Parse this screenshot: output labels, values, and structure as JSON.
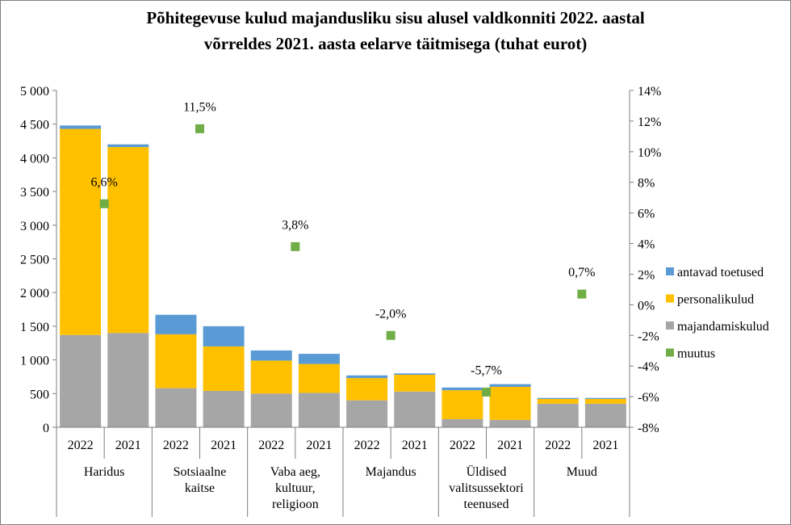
{
  "chart_data": {
    "type": "bar",
    "title_line1": "Põhitegevuse kulud majandusliku sisu alusel valdkonniti 2022. aastal",
    "title_line2": "võrreldes 2021. aasta eelarve täitmisega (tuhat eurot)",
    "groups": [
      {
        "label_lines": [
          "Haridus"
        ],
        "years": [
          "2022",
          "2021"
        ]
      },
      {
        "label_lines": [
          "Sotsiaalne",
          "kaitse"
        ],
        "years": [
          "2022",
          "2021"
        ]
      },
      {
        "label_lines": [
          "Vaba aeg,",
          "kultuur,",
          "religioon"
        ],
        "years": [
          "2022",
          "2021"
        ]
      },
      {
        "label_lines": [
          "Majandus"
        ],
        "years": [
          "2022",
          "2021"
        ]
      },
      {
        "label_lines": [
          "Üldised",
          "valitsussektori",
          "teenused"
        ],
        "years": [
          "2022",
          "2021"
        ]
      },
      {
        "label_lines": [
          "Muud"
        ],
        "years": [
          "2022",
          "2021"
        ]
      }
    ],
    "series": [
      {
        "name": "majandamiskulud",
        "color": "#a6a6a6",
        "values": [
          1370,
          1400,
          580,
          540,
          500,
          510,
          400,
          530,
          120,
          110,
          350,
          350
        ]
      },
      {
        "name": "personalikulud",
        "color": "#ffc000",
        "values": [
          3060,
          2760,
          800,
          660,
          490,
          430,
          330,
          250,
          430,
          490,
          70,
          70
        ]
      },
      {
        "name": "antavad toetused",
        "color": "#5b9bd5",
        "values": [
          50,
          40,
          290,
          300,
          150,
          150,
          40,
          20,
          40,
          40,
          15,
          15
        ]
      }
    ],
    "change_series": {
      "name": "muutus",
      "color": "#70ad47",
      "values": [
        6.6,
        11.5,
        3.8,
        -2.0,
        -5.7,
        0.7
      ],
      "labels": [
        "6,6%",
        "11,5%",
        "3,8%",
        "-2,0%",
        "-5,7%",
        "0,7%"
      ]
    },
    "y_left": {
      "min": 0,
      "max": 5000,
      "step": 500,
      "tick_labels": [
        "0",
        "500",
        "1 000",
        "1 500",
        "2 000",
        "2 500",
        "3 000",
        "3 500",
        "4 000",
        "4 500",
        "5 000"
      ]
    },
    "y_right": {
      "min": -8,
      "max": 14,
      "step": 2,
      "tick_labels": [
        "-8%",
        "-6%",
        "-4%",
        "-2%",
        "0%",
        "2%",
        "4%",
        "6%",
        "8%",
        "10%",
        "12%",
        "14%"
      ]
    },
    "legend": {
      "placement": "right",
      "entries": [
        {
          "label": "antavad toetused",
          "color": "#5b9bd5"
        },
        {
          "label": "personalikulud",
          "color": "#ffc000"
        },
        {
          "label": "majandamiskulud",
          "color": "#a6a6a6"
        },
        {
          "label": "muutus",
          "color": "#70ad47"
        }
      ]
    },
    "grid": false
  }
}
